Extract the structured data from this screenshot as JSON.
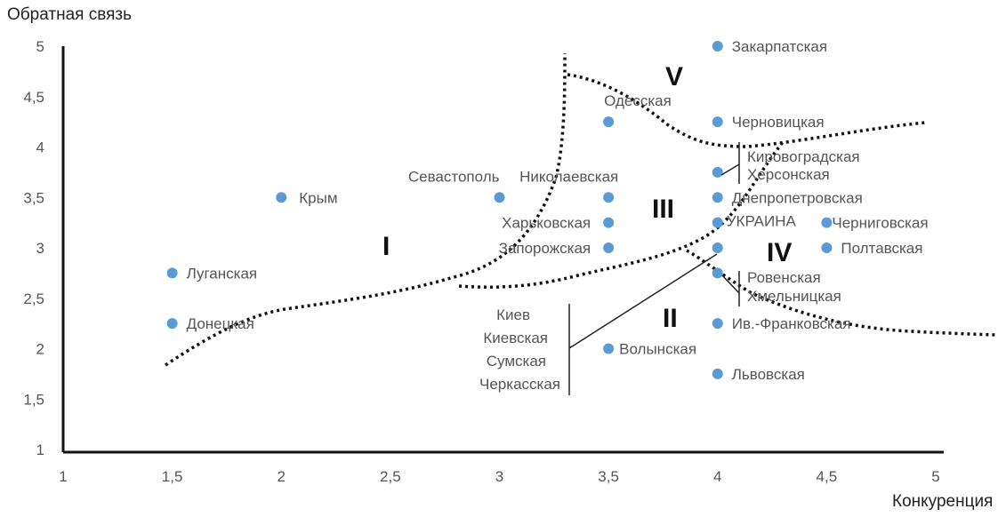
{
  "chart_data": {
    "type": "scatter",
    "xlabel": "Конкуренция",
    "ylabel": "Обратная связь",
    "xlim": [
      1,
      5
    ],
    "ylim": [
      1,
      5
    ],
    "x_ticks": [
      "1",
      "1,5",
      "2",
      "2,5",
      "3",
      "3,5",
      "4",
      "4,5",
      "5"
    ],
    "y_ticks": [
      "1",
      "1,5",
      "2",
      "2,5",
      "3",
      "3,5",
      "4",
      "4,5",
      "5"
    ],
    "marker_color": "#5b9bd5",
    "points": [
      {
        "x": 1.5,
        "y": 2.75,
        "label": "Луганская"
      },
      {
        "x": 1.5,
        "y": 2.25,
        "label": "Донецкая"
      },
      {
        "x": 2.0,
        "y": 3.5,
        "label": "Крым"
      },
      {
        "x": 3.0,
        "y": 3.5,
        "label": "Севастополь"
      },
      {
        "x": 3.5,
        "y": 3.5,
        "label": "Николаевская"
      },
      {
        "x": 3.5,
        "y": 3.25,
        "label": "Харьковская"
      },
      {
        "x": 3.5,
        "y": 3.0,
        "label": "Запорожская"
      },
      {
        "x": 3.5,
        "y": 4.25,
        "label": "Одесская"
      },
      {
        "x": 3.5,
        "y": 2.0,
        "label": "Волынская"
      },
      {
        "x": 4.0,
        "y": 5.0,
        "label": "Закарпатская"
      },
      {
        "x": 4.0,
        "y": 4.25,
        "label": "Черновицкая"
      },
      {
        "x": 4.0,
        "y": 3.75,
        "label": ""
      },
      {
        "x": 4.0,
        "y": 3.5,
        "label": "Днепропетровская"
      },
      {
        "x": 4.0,
        "y": 3.25,
        "label": "УКРАИНА"
      },
      {
        "x": 4.0,
        "y": 3.0,
        "label": ""
      },
      {
        "x": 4.0,
        "y": 2.75,
        "label": ""
      },
      {
        "x": 4.0,
        "y": 2.25,
        "label": "Ив.-Франковская"
      },
      {
        "x": 4.0,
        "y": 1.75,
        "label": "Львовская"
      },
      {
        "x": 4.5,
        "y": 3.25,
        "label": "Черниговская"
      },
      {
        "x": 4.5,
        "y": 3.0,
        "label": "Полтавская"
      }
    ],
    "bracket_labels": {
      "upper": [
        "Кировоградская",
        "Херсонская"
      ],
      "lower": [
        "Ровенская",
        "Хмельницкая"
      ],
      "left": [
        "Киев",
        "Киевская",
        "Сумская",
        "Черкасская"
      ]
    },
    "zones": [
      "I",
      "II",
      "III",
      "IV",
      "V"
    ],
    "grid": false
  }
}
